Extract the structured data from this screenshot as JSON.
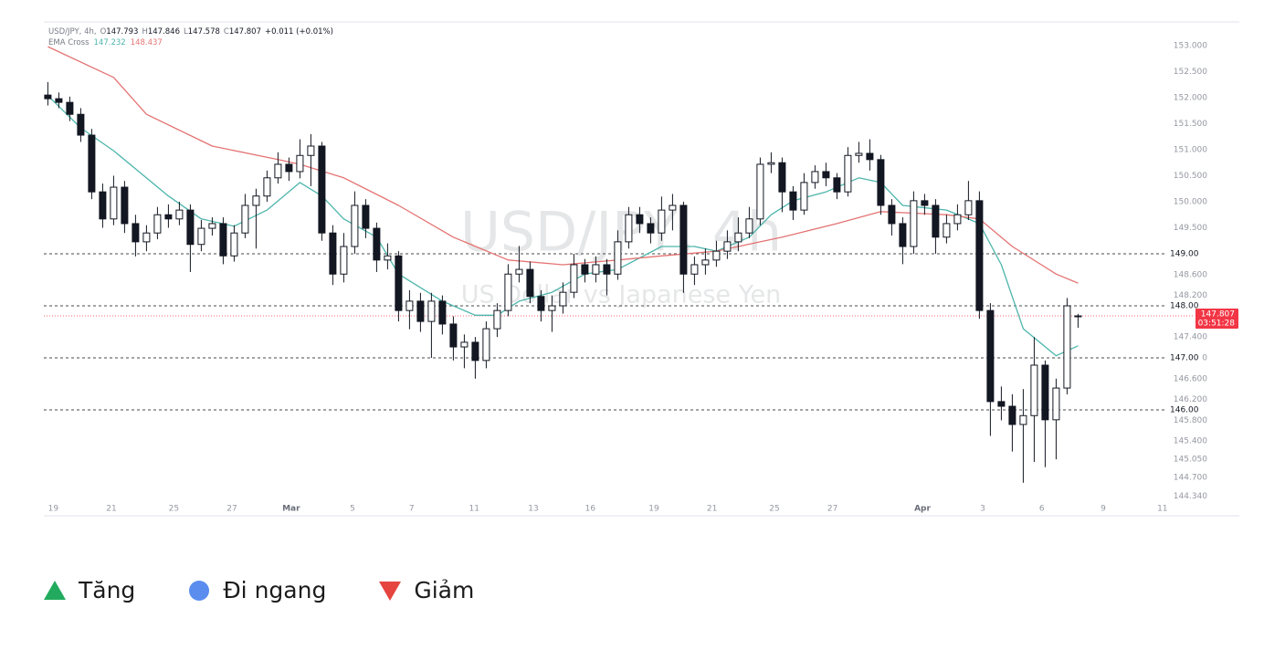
{
  "chart_data": {
    "type": "candlestick",
    "symbol": "USD/JPY, 4h,",
    "ohlc_prefixes": [
      "O",
      "H",
      "L",
      "C"
    ],
    "change": "+0.011 (+0.01%)",
    "indicator": "EMA Cross",
    "watermark": "USD/JPY, 4h",
    "watermark_subtitle": "US Dollar vs Japanese Yen",
    "countdown": "03:51:28",
    "open": [
      152.05,
      151.98,
      151.91,
      151.68,
      151.28,
      150.19,
      149.67,
      150.28,
      149.58,
      149.23,
      149.4,
      149.75,
      149.67,
      149.84,
      149.18,
      149.49,
      149.58,
      148.96,
      149.4,
      149.93,
      150.11,
      150.46,
      150.72,
      150.58,
      150.89,
      151.07,
      149.4,
      148.61,
      149.14,
      149.93,
      149.49,
      148.88,
      148.96,
      147.91,
      148.09,
      147.7,
      148.09,
      147.65,
      147.21,
      147.3,
      146.95,
      147.56,
      147.91,
      148.61,
      148.7,
      148.18,
      147.91,
      148.0,
      148.26,
      148.79,
      148.61,
      148.79,
      148.61,
      149.23,
      149.75,
      149.58,
      149.4,
      149.84,
      149.93,
      148.61,
      148.79,
      148.88,
      149.05,
      149.23,
      149.4,
      149.67,
      150.72,
      150.75,
      150.19,
      149.84,
      150.37,
      150.58,
      150.46,
      150.19,
      150.89,
      150.93,
      150.81,
      149.93,
      149.58,
      149.14,
      150.02,
      149.93,
      149.32,
      149.58,
      149.75,
      150.02,
      147.91,
      146.16,
      146.07,
      145.72,
      145.89,
      146.86,
      145.81,
      146.42,
      147.793
    ],
    "high": [
      152.3,
      152.1,
      152.02,
      151.8,
      151.4,
      150.35,
      150.5,
      150.4,
      149.75,
      149.55,
      149.9,
      149.95,
      150.0,
      149.95,
      149.65,
      149.7,
      149.7,
      149.55,
      150.15,
      150.25,
      150.6,
      150.95,
      150.85,
      151.2,
      151.3,
      151.15,
      149.55,
      149.4,
      150.2,
      150.05,
      149.6,
      149.2,
      149.05,
      148.3,
      148.25,
      148.25,
      148.2,
      147.8,
      147.45,
      147.4,
      147.7,
      148.05,
      148.8,
      149.15,
      148.85,
      148.3,
      148.2,
      148.45,
      149.0,
      148.9,
      148.95,
      148.9,
      149.45,
      149.9,
      149.9,
      149.7,
      150.1,
      150.15,
      150.0,
      148.95,
      149.1,
      149.25,
      149.45,
      149.7,
      149.9,
      150.85,
      150.95,
      150.85,
      150.3,
      150.55,
      150.7,
      150.75,
      150.55,
      151.05,
      151.15,
      151.2,
      150.9,
      150.05,
      149.7,
      150.2,
      150.15,
      150.05,
      149.75,
      149.95,
      150.4,
      150.2,
      148.05,
      146.45,
      146.3,
      146.4,
      147.4,
      146.95,
      146.6,
      148.15,
      147.846
    ],
    "low": [
      151.85,
      151.8,
      151.55,
      151.15,
      150.05,
      149.5,
      149.55,
      149.4,
      148.95,
      149.05,
      149.28,
      149.5,
      149.55,
      148.65,
      149.05,
      149.35,
      148.8,
      148.85,
      149.3,
      149.1,
      150.0,
      150.35,
      150.4,
      150.45,
      150.3,
      149.25,
      148.4,
      148.45,
      149.0,
      149.3,
      148.65,
      148.7,
      147.7,
      147.55,
      147.5,
      147.0,
      147.45,
      146.95,
      146.8,
      146.6,
      146.8,
      147.4,
      147.8,
      148.45,
      148.05,
      147.7,
      147.5,
      147.85,
      148.15,
      148.45,
      148.45,
      148.2,
      148.5,
      149.1,
      149.4,
      149.2,
      149.25,
      149.45,
      148.25,
      148.4,
      148.6,
      148.75,
      148.9,
      149.05,
      149.3,
      149.55,
      150.55,
      149.8,
      149.65,
      149.75,
      150.25,
      150.3,
      150.05,
      150.1,
      150.75,
      150.6,
      149.75,
      149.35,
      148.8,
      149.0,
      149.75,
      149.0,
      149.2,
      149.45,
      149.65,
      147.75,
      145.5,
      145.8,
      145.2,
      144.6,
      145.0,
      144.9,
      145.05,
      146.3,
      147.578
    ],
    "close": [
      151.98,
      151.91,
      151.68,
      151.28,
      150.19,
      149.67,
      150.28,
      149.58,
      149.23,
      149.4,
      149.75,
      149.67,
      149.84,
      149.18,
      149.49,
      149.58,
      148.96,
      149.4,
      149.93,
      150.11,
      150.46,
      150.72,
      150.58,
      150.89,
      151.07,
      149.4,
      148.61,
      149.14,
      149.93,
      149.49,
      148.88,
      148.96,
      147.91,
      148.09,
      147.7,
      148.09,
      147.65,
      147.21,
      147.3,
      146.95,
      147.56,
      147.91,
      148.61,
      148.7,
      148.18,
      147.91,
      148.0,
      148.26,
      148.79,
      148.61,
      148.79,
      148.61,
      149.23,
      149.75,
      149.58,
      149.4,
      149.84,
      149.93,
      148.61,
      148.79,
      148.88,
      149.05,
      149.23,
      149.4,
      149.67,
      150.72,
      150.75,
      150.19,
      149.84,
      150.37,
      150.58,
      150.46,
      150.19,
      150.89,
      150.93,
      150.81,
      149.93,
      149.58,
      149.14,
      150.02,
      149.93,
      149.32,
      149.58,
      149.75,
      150.02,
      147.91,
      146.16,
      146.07,
      145.72,
      145.89,
      146.86,
      145.81,
      146.42,
      148.0,
      147.807
    ],
    "up_color": "#ffffff",
    "down_color": "#131722",
    "series": [
      {
        "color": "#4db6ac",
        "x": [
          0,
          3,
          6,
          11,
          14,
          17,
          20,
          23,
          25,
          27,
          30,
          32,
          36,
          39,
          41,
          43,
          46,
          49,
          52,
          56,
          59,
          61,
          64,
          66,
          68,
          71,
          74,
          76,
          78,
          82,
          85,
          87,
          89,
          92,
          94
        ],
        "values": [
          152.04,
          151.42,
          150.98,
          150.11,
          149.67,
          149.53,
          149.84,
          150.37,
          150.11,
          149.67,
          149.32,
          148.61,
          148.09,
          147.82,
          147.82,
          148.09,
          148.26,
          148.61,
          148.7,
          149.14,
          149.14,
          149.05,
          149.32,
          149.75,
          150.02,
          150.19,
          150.46,
          150.37,
          149.93,
          149.84,
          149.58,
          148.79,
          147.56,
          147.04,
          147.232
        ]
      },
      {
        "color": "#e57373",
        "x": [
          0,
          6,
          9,
          15,
          21,
          23,
          27,
          32,
          37,
          42,
          47,
          52,
          56,
          61,
          67,
          72,
          76,
          82,
          85,
          88,
          92,
          94
        ],
        "values": [
          152.98,
          152.39,
          151.68,
          151.07,
          150.81,
          150.72,
          150.46,
          149.93,
          149.32,
          148.88,
          148.79,
          148.88,
          148.96,
          149.05,
          149.32,
          149.58,
          149.81,
          149.75,
          149.67,
          149.14,
          148.61,
          148.437
        ]
      }
    ],
    "xlim": [
      -0.2,
      102.3
    ],
    "xticks": [
      {
        "value": 0.5,
        "label": "19"
      },
      {
        "value": 5.8,
        "label": "21"
      },
      {
        "value": 11.5,
        "label": "25"
      },
      {
        "value": 16.8,
        "label": "27"
      },
      {
        "value": 22.2,
        "label": "Mar"
      },
      {
        "value": 27.8,
        "label": "5"
      },
      {
        "value": 33.2,
        "label": "7"
      },
      {
        "value": 38.9,
        "label": "11"
      },
      {
        "value": 44.3,
        "label": "13"
      },
      {
        "value": 49.5,
        "label": "16"
      },
      {
        "value": 55.3,
        "label": "19"
      },
      {
        "value": 60.6,
        "label": "21"
      },
      {
        "value": 66.3,
        "label": "25"
      },
      {
        "value": 71.6,
        "label": "27"
      },
      {
        "value": 79.8,
        "label": "Apr"
      },
      {
        "value": 85.3,
        "label": "3"
      },
      {
        "value": 90.7,
        "label": "6"
      },
      {
        "value": 96.3,
        "label": "9"
      },
      {
        "value": 101.7,
        "label": "11"
      }
    ],
    "ylim": [
      143.965,
      153.456
    ],
    "yticks": [
      {
        "value": 153,
        "label": "153.000"
      },
      {
        "value": 152.5,
        "label": "152.500"
      },
      {
        "value": 152,
        "label": "152.000"
      },
      {
        "value": 151.5,
        "label": "151.500"
      },
      {
        "value": 151,
        "label": "151.000"
      },
      {
        "value": 150.5,
        "label": "150.500"
      },
      {
        "value": 150,
        "label": "150.000"
      },
      {
        "value": 149.5,
        "label": "149.500"
      },
      {
        "value": 148.6,
        "label": "148.600"
      },
      {
        "value": 148.2,
        "label": "148.200"
      },
      {
        "value": 147.4,
        "label": "147.400"
      },
      {
        "value": 147,
        "label": "147.000"
      },
      {
        "value": 146.6,
        "label": "146.600"
      },
      {
        "value": 146.2,
        "label": "146.200"
      },
      {
        "value": 145.8,
        "label": "145.800"
      },
      {
        "value": 145.4,
        "label": "145.400"
      },
      {
        "value": 145.05,
        "label": "145.050"
      },
      {
        "value": 144.7,
        "label": "144.700"
      },
      {
        "value": 144.34,
        "label": "144.340"
      }
    ],
    "hlines": [
      {
        "value": 149,
        "label": "149.00"
      },
      {
        "value": 148,
        "label": "148.00"
      },
      {
        "value": 147,
        "label": "147.00"
      },
      {
        "value": 146,
        "label": "146.00"
      }
    ],
    "price_color": "#f23645"
  },
  "legend": [
    {
      "label": "Tăng",
      "color": "#22ab5e",
      "shape": "triangle-up"
    },
    {
      "label": "Đi ngang",
      "color": "#5b8def",
      "shape": "circle"
    },
    {
      "label": "Giảm",
      "color": "#e5443f",
      "shape": "triangle-down"
    }
  ]
}
